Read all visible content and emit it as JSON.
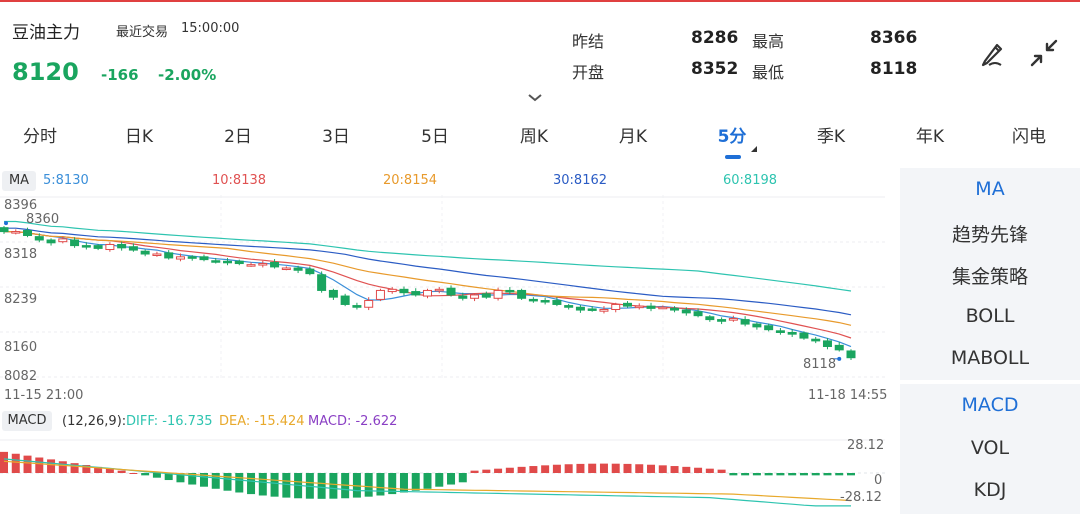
{
  "header": {
    "title": "豆油主力",
    "last_trade_label": "最近交易",
    "last_trade_time": "15:00:00",
    "price": "8120",
    "change": "-166",
    "change_pct": "-2.00%",
    "quote": {
      "prev_settle_label": "昨结",
      "prev_settle": "8286",
      "high_label": "最高",
      "high": "8366",
      "open_label": "开盘",
      "open": "8352",
      "low_label": "最低",
      "low": "8118"
    }
  },
  "tabs": [
    "分时",
    "日K",
    "2日",
    "3日",
    "5日",
    "周K",
    "月K",
    "5分",
    "季K",
    "年K",
    "闪电"
  ],
  "active_tab": "5分",
  "ma_legend": {
    "tag": "MA",
    "items": [
      {
        "label": "5:8130",
        "color": "#3b8fd9"
      },
      {
        "label": "10:8138",
        "color": "#e05252"
      },
      {
        "label": "20:8154",
        "color": "#e89a2c"
      },
      {
        "label": "30:8162",
        "color": "#2b5cc4"
      },
      {
        "label": "60:8198",
        "color": "#2ec4b0"
      }
    ]
  },
  "macd_legend": {
    "tag": "MACD",
    "params": "(12,26,9):",
    "diff": "DIFF: -16.735",
    "dea": "DEA: -15.424",
    "macd": "MACD: -2.622",
    "diff_color": "#2ec4b0",
    "dea_color": "#e8a92c",
    "macd_color": "#8a3fc4"
  },
  "main_axis": {
    "labels": [
      "8396",
      "8360",
      "8318",
      "8239",
      "8160",
      "8082"
    ],
    "min_marker": "8118",
    "start_time": "11-15 21:00",
    "end_time": "11-18 14:55"
  },
  "macd_axis": {
    "top": "28.12",
    "zero": "0",
    "bottom": "-28.12"
  },
  "sidebar": {
    "main_indicators": [
      "MA",
      "趋势先锋",
      "集金策略",
      "BOLL",
      "MABOLL"
    ],
    "sub_indicators": [
      "MACD",
      "VOL",
      "KDJ"
    ]
  },
  "colors": {
    "up": "#e04a4a",
    "down": "#1aa55f",
    "accent": "#1f6fd6"
  },
  "chart_data": [
    {
      "type": "candlestick",
      "title": "",
      "ylim": [
        8082,
        8396
      ],
      "x_range": [
        "11-15 21:00",
        "11-18 14:55"
      ],
      "close_series_approx": [
        8345,
        8345,
        8338,
        8330,
        8325,
        8332,
        8320,
        8318,
        8315,
        8322,
        8316,
        8312,
        8305,
        8305,
        8298,
        8300,
        8298,
        8295,
        8292,
        8290,
        8288,
        8286,
        8288,
        8282,
        8280,
        8276,
        8270,
        8240,
        8228,
        8215,
        8210,
        8222,
        8240,
        8242,
        8236,
        8232,
        8240,
        8242,
        8232,
        8226,
        8232,
        8228,
        8240,
        8238,
        8226,
        8222,
        8220,
        8215,
        8210,
        8205,
        8205,
        8206,
        8215,
        8212,
        8212,
        8208,
        8210,
        8205,
        8200,
        8195,
        8188,
        8185,
        8190,
        8180,
        8175,
        8170,
        8165,
        8162,
        8155,
        8150,
        8140,
        8134,
        8120
      ],
      "ma": [
        {
          "name": "MA5",
          "last": 8130
        },
        {
          "name": "MA10",
          "last": 8138
        },
        {
          "name": "MA20",
          "last": 8154
        },
        {
          "name": "MA30",
          "last": 8162
        },
        {
          "name": "MA60",
          "last": 8198
        }
      ]
    },
    {
      "type": "bar",
      "title": "",
      "ylim": [
        -28.12,
        28.12
      ],
      "series": [
        {
          "name": "DIFF",
          "last": -16.735
        },
        {
          "name": "DEA",
          "last": -15.424
        },
        {
          "name": "MACD",
          "last": -2.622
        }
      ]
    }
  ]
}
